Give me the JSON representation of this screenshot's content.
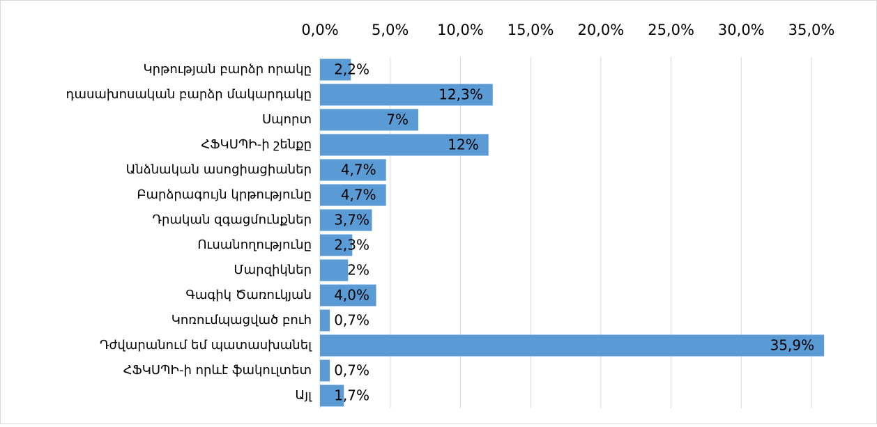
{
  "chart_data": {
    "type": "barh",
    "categories": [
      "Կրթության բարձր որակը",
      "դասախոսական բարձր մակարդակը",
      "Սպորտ",
      "ՀՖԿՍՊԻ-ի շենքը",
      "Անձնական ասոցիացիաներ",
      "Բարձրագույն կրթությունը",
      "Դրական զգացմունքներ",
      "Ուսանողությունը",
      "Մարզիկներ",
      "Գագիկ Ծառուկյան",
      "Կոռումպացված բուհ",
      "Դժվարանում եմ պատասխանել",
      "ՀՖԿՍՊԻ-ի որևէ ֆակուլտետ",
      "Այլ"
    ],
    "values": [
      2.2,
      12.3,
      7,
      12,
      4.7,
      4.7,
      3.7,
      2.3,
      2,
      4.0,
      0.7,
      35.9,
      0.7,
      1.7
    ],
    "value_labels": [
      "2,2%",
      "12,3%",
      "7%",
      "12%",
      "4,7%",
      "4,7%",
      "3,7%",
      "2,3%",
      "2%",
      "4,0%",
      "0,7%",
      "35,9%",
      "0,7%",
      "1,7%"
    ],
    "color": "#5b9bd5",
    "xlim": [
      0,
      35
    ],
    "xticks": [
      {
        "value": 0,
        "label": "0,0%"
      },
      {
        "value": 5,
        "label": "5,0%"
      },
      {
        "value": 10,
        "label": "10,0%"
      },
      {
        "value": 15,
        "label": "15,0%"
      },
      {
        "value": 20,
        "label": "20,0%"
      },
      {
        "value": 25,
        "label": "25,0%"
      },
      {
        "value": 30,
        "label": "30,0%"
      },
      {
        "value": 35,
        "label": "35,0%"
      }
    ],
    "grid": true
  }
}
